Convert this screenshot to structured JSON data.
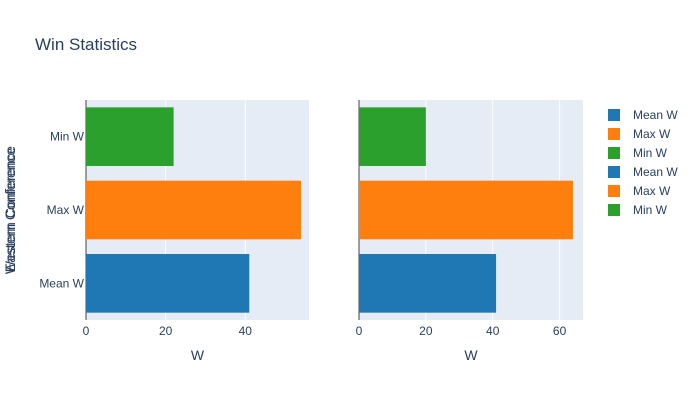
{
  "chart_data": {
    "type": "bar",
    "orientation": "horizontal",
    "title": "Win Statistics",
    "y_axis_titles": [
      "Eastern Conference",
      "Western Conference"
    ],
    "categories": [
      "Mean W",
      "Max W",
      "Min W"
    ],
    "colors": [
      "#1f77b4",
      "#ff7f0e",
      "#2ca02c"
    ],
    "grid": true,
    "legend_position": "right",
    "panels": [
      {
        "xlabel": "W",
        "xlim": [
          0,
          56
        ],
        "xticks": [
          0,
          20,
          40
        ],
        "values": [
          41,
          54,
          22
        ]
      },
      {
        "xlabel": "W",
        "xlim": [
          0,
          67
        ],
        "xticks": [
          0,
          20,
          40,
          60
        ],
        "values": [
          41,
          64,
          20
        ]
      }
    ],
    "legend": [
      "Mean W",
      "Max W",
      "Min W",
      "Mean W",
      "Max W",
      "Min W"
    ]
  }
}
